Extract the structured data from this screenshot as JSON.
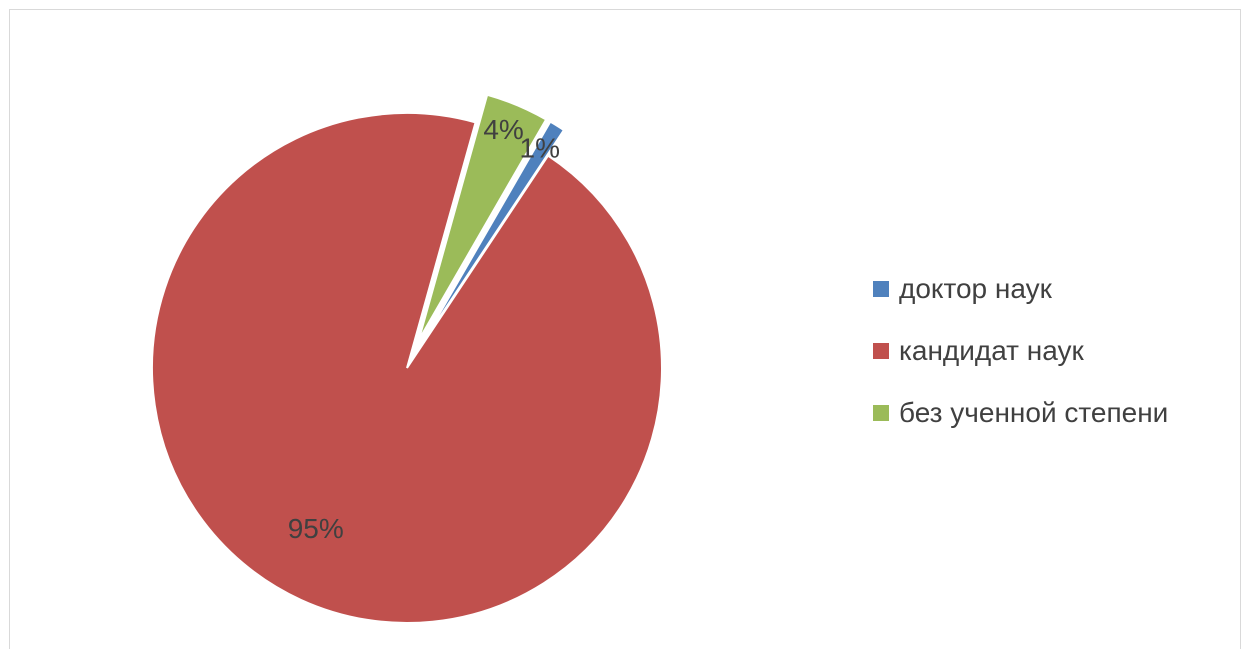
{
  "chart_data": {
    "type": "pie",
    "title": "",
    "categories": [
      "доктор наук",
      "кандидат наук",
      "без ученной степени"
    ],
    "values": [
      1,
      95,
      4
    ],
    "data_labels": [
      "1%",
      "95%",
      "4%"
    ],
    "colors": [
      "#4f81bd",
      "#c0504d",
      "#9bbb59"
    ],
    "exploded": [
      true,
      false,
      true
    ],
    "legend_position": "right",
    "start_angle_deg": 30,
    "direction": "clockwise"
  }
}
